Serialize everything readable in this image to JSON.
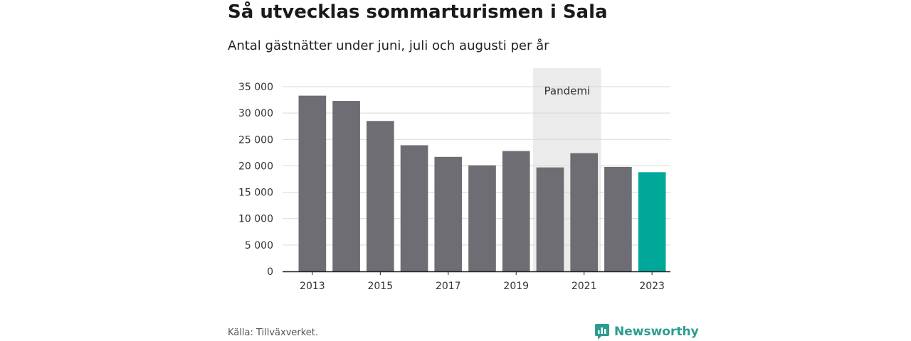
{
  "header": {
    "title": "Så utvecklas sommarturismen i Sala",
    "subtitle": "Antal gästnätter under juni, juli och augusti per år"
  },
  "footer": {
    "source": "Källa: Tillväxverket.",
    "brand": "Newsworthy"
  },
  "colors": {
    "bar": "#6e6d73",
    "highlight": "#00a89a",
    "pandemic_band": "#ebebeb",
    "grid": "#d9d9d9",
    "brand": "#2a9d8f"
  },
  "icons": {
    "brand_logo": "newsworthy-logo-icon"
  },
  "chart_data": {
    "type": "bar",
    "title": "Så utvecklas sommarturismen i Sala",
    "subtitle": "Antal gästnätter under juni, juli och augusti per år",
    "categories": [
      "2013",
      "2014",
      "2015",
      "2016",
      "2017",
      "2018",
      "2019",
      "2020",
      "2021",
      "2022",
      "2023"
    ],
    "values": [
      33300,
      32300,
      28500,
      23900,
      21700,
      20100,
      22800,
      19700,
      22400,
      19800,
      18800
    ],
    "highlight_category": "2023",
    "ylim": [
      0,
      35000
    ],
    "yticks": [
      0,
      5000,
      10000,
      15000,
      20000,
      25000,
      30000,
      35000
    ],
    "ytick_labels": [
      "0",
      "5 000",
      "10 000",
      "15 000",
      "20 000",
      "25 000",
      "30 000",
      "35 000"
    ],
    "xtick_labels": [
      "2013",
      "2015",
      "2017",
      "2019",
      "2021",
      "2023"
    ],
    "grid": true,
    "annotations": [
      {
        "label": "Pandemi",
        "from": "2020",
        "to": "2021"
      }
    ]
  }
}
